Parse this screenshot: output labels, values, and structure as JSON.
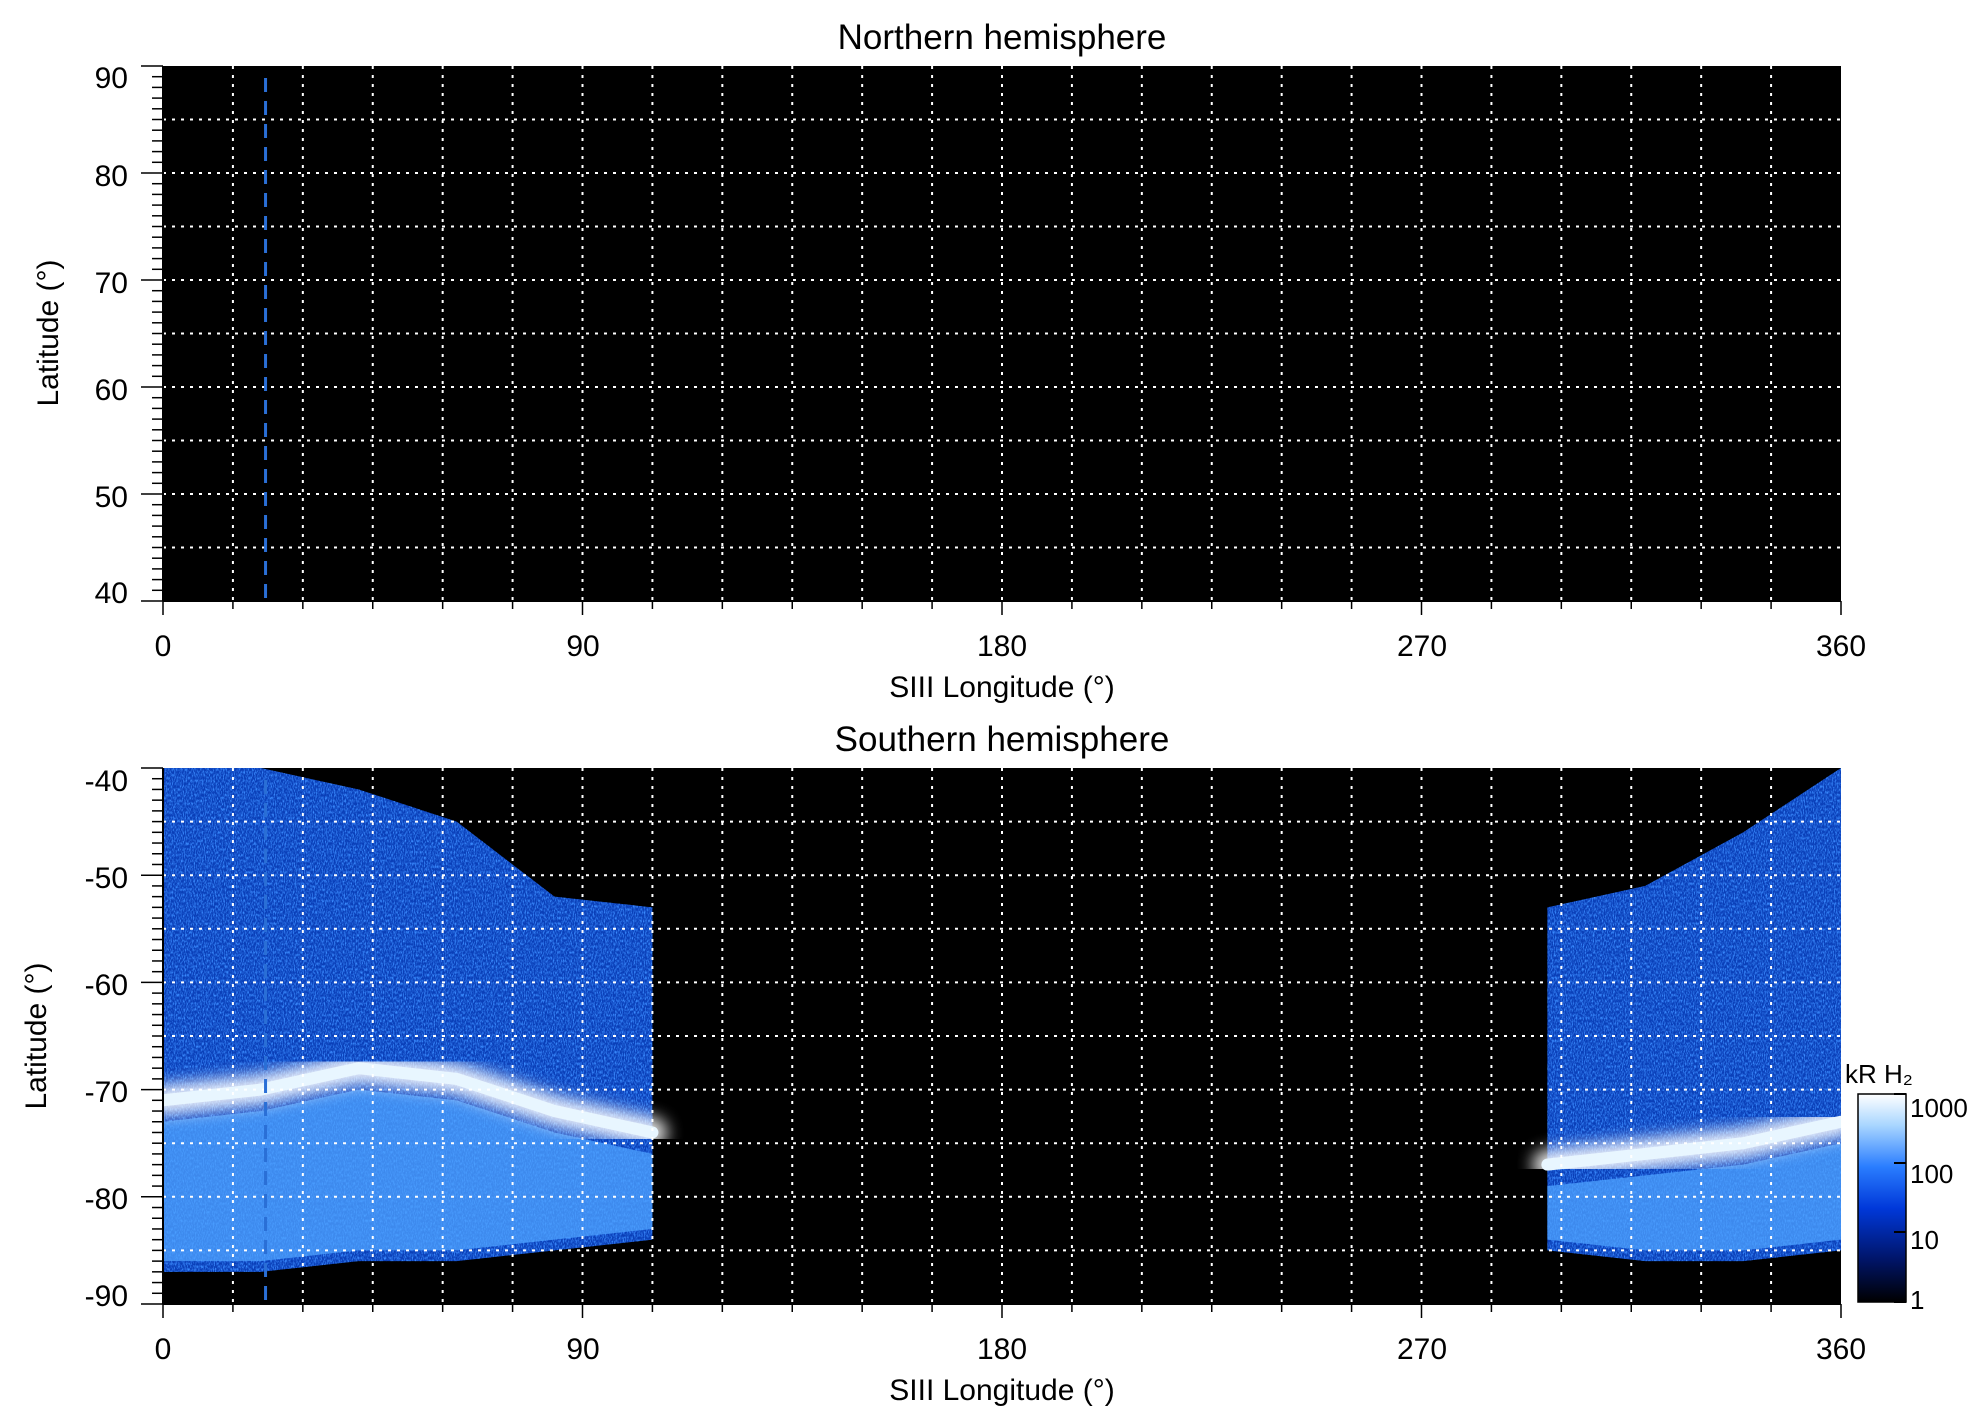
{
  "colors": {
    "background": "#000000",
    "grid": "#ffffff",
    "marker": "#2a6fd6",
    "colormap": [
      "#000000",
      "#001a66",
      "#0033cc",
      "#1a6fff",
      "#66aaff",
      "#ccecff",
      "#ffffff"
    ]
  },
  "chart_data": [
    {
      "type": "heatmap",
      "title": "Northern hemisphere",
      "xlabel": "SIII Longitude (°)",
      "ylabel": "Latitude (°)",
      "xlim": [
        0,
        360
      ],
      "ylim": [
        40,
        90
      ],
      "xticks": [
        0,
        90,
        180,
        270,
        360
      ],
      "yticks": [
        40,
        50,
        60,
        70,
        80,
        90
      ],
      "grid": true,
      "grid_x_step": 15,
      "grid_y_step": 5,
      "marker_longitude": 22,
      "emission": "none"
    },
    {
      "type": "heatmap",
      "title": "Southern hemisphere",
      "xlabel": "SIII Longitude (°)",
      "ylabel": "Latitude (°)",
      "xlim": [
        0,
        360
      ],
      "ylim": [
        -90,
        -40
      ],
      "xticks": [
        0,
        90,
        180,
        270,
        360
      ],
      "yticks": [
        -90,
        -80,
        -70,
        -60,
        -50,
        -40
      ],
      "grid": true,
      "grid_x_step": 15,
      "grid_y_step": 5,
      "marker_longitude": 22,
      "oval_segments": [
        {
          "lon": [
            0,
            105
          ],
          "lat_oval": [
            -71,
            -70,
            -68,
            -69,
            -72,
            -74
          ],
          "edge_lat": [
            -40,
            -40,
            -42,
            -45,
            -52,
            -53
          ],
          "bottom_lat": [
            -87,
            -87,
            -86,
            -86,
            -85,
            -84
          ]
        },
        {
          "lon": [
            297,
            360
          ],
          "lat_oval": [
            -77,
            -76,
            -75,
            -73
          ],
          "edge_lat": [
            -53,
            -51,
            -46,
            -40
          ],
          "bottom_lat": [
            -85,
            -86,
            -86,
            -85
          ]
        }
      ],
      "colorbar": {
        "label": "kR H₂",
        "scale": "log",
        "ticks": [
          "1",
          "10",
          "100",
          "1000"
        ],
        "range": [
          1,
          1000
        ]
      }
    }
  ]
}
